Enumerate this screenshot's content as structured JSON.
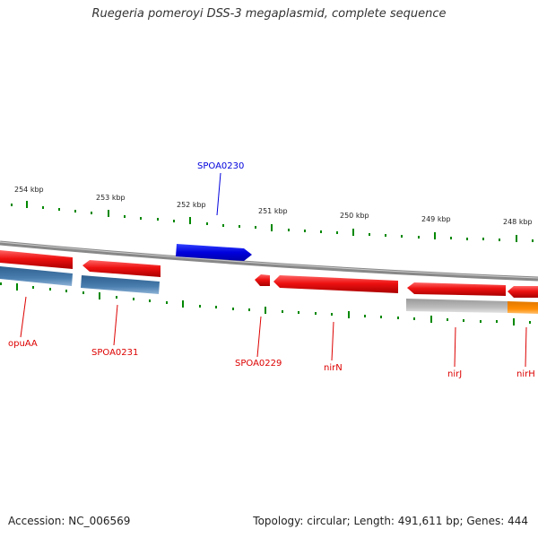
{
  "title": "Ruegeria pomeroyi DSS-3 megaplasmid, complete sequence",
  "footer": {
    "accession": "Accession: NC_006569",
    "summary": "Topology: circular; Length: 491,611 bp; Genes: 444"
  },
  "colors": {
    "forward_gene": "#0000dd",
    "reverse_gene": "#ee1111",
    "blue_feature": "#4a7fb0",
    "grey_feature": "#bbbbbb",
    "orange_feature": "#ff8c00",
    "ticks": "#008800",
    "backbone": "#888888"
  },
  "scale_labels": [
    "254 kbp",
    "253 kbp",
    "252 kbp",
    "251 kbp",
    "250 kbp",
    "249 kbp",
    "248 kbp"
  ],
  "gene_labels": {
    "spoa0230": "SPOA0230",
    "opuaa": "opuAA",
    "spoa0231": "SPOA0231",
    "spoa0229": "SPOA0229",
    "nirn": "nirN",
    "nirj": "nirJ",
    "nirh": "nirH"
  }
}
